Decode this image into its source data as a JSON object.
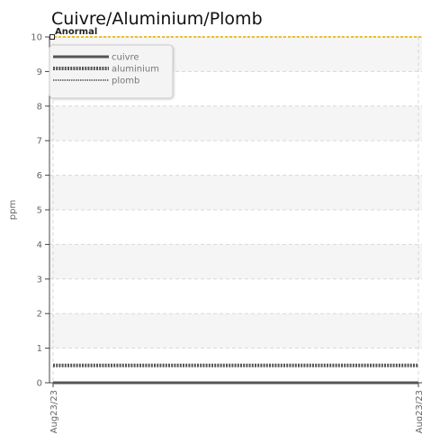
{
  "chart_data": {
    "type": "line",
    "title": "Cuivre/Aluminium/Plomb",
    "ylabel": "ppm",
    "xlabel": "",
    "x": [
      "Aug23/23",
      "Aug23/23"
    ],
    "ylim": [
      0,
      10
    ],
    "yticks": [
      0,
      1,
      2,
      3,
      4,
      5,
      6,
      7,
      8,
      9,
      10
    ],
    "grid": true,
    "legend_position": "top-left",
    "series": [
      {
        "name": "cuivre",
        "values": [
          0,
          0
        ],
        "color": "#555555",
        "style": "solid"
      },
      {
        "name": "aluminium",
        "values": [
          0.5,
          0.5
        ],
        "color": "#555555",
        "style": "dotted-bold"
      },
      {
        "name": "plomb",
        "values": [
          0,
          0
        ],
        "color": "#777777",
        "style": "dotted"
      }
    ],
    "threshold": {
      "label": "Anormal",
      "value": 10,
      "color": "#f0c020"
    }
  }
}
